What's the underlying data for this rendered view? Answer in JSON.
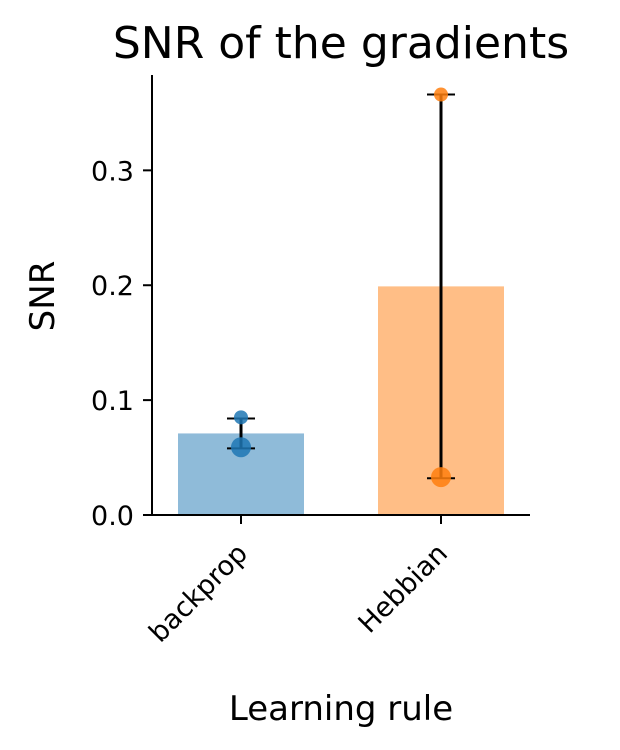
{
  "chart_data": {
    "type": "bar",
    "title": "SNR of the gradients",
    "xlabel": "Learning rule",
    "ylabel": "SNR",
    "categories": [
      "backprop",
      "Hebbian"
    ],
    "values": [
      0.071,
      0.199
    ],
    "bar_colors": [
      "#8fbbd9",
      "#ffbe86"
    ],
    "points": [
      {
        "category": "backprop",
        "values": [
          0.085,
          0.059
        ],
        "color": "#1f77b4"
      },
      {
        "category": "Hebbian",
        "values": [
          0.366,
          0.033
        ],
        "color": "#ff7f0e"
      }
    ],
    "error_ranges": [
      [
        0.058,
        0.084
      ],
      [
        0.032,
        0.366
      ]
    ],
    "ylim": [
      0,
      0.383
    ],
    "yticks": [
      0.0,
      0.1,
      0.2,
      0.3
    ],
    "ytick_labels": [
      "0.0",
      "0.1",
      "0.2",
      "0.3"
    ],
    "grid": false,
    "legend": "none"
  }
}
